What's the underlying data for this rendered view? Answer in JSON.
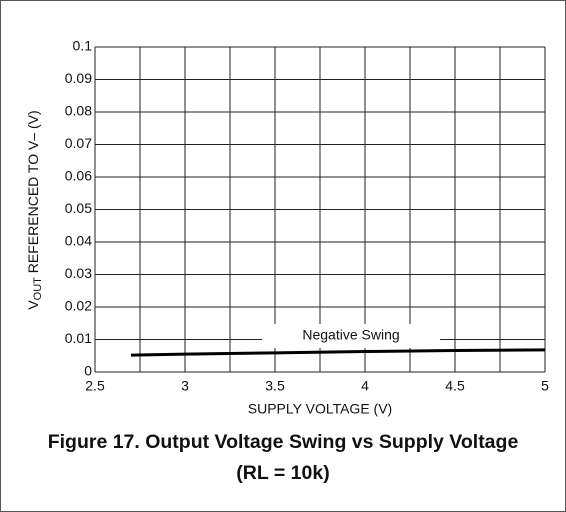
{
  "chart_data": {
    "type": "line",
    "title": "Figure 17. Output Voltage Swing vs Supply Voltage (RL = 10k)",
    "xlabel": "SUPPLY VOLTAGE (V)",
    "ylabel": [
      "V",
      "OUT",
      " REFERENCED TO V– (V)"
    ],
    "annotation": "Negative Swing",
    "x": [
      2.7,
      3,
      3.5,
      4,
      4.5,
      5
    ],
    "series": [
      {
        "name": "Negative Swing",
        "color": "#000000",
        "values": [
          0.0052,
          0.0055,
          0.0059,
          0.0063,
          0.0066,
          0.0068
        ]
      }
    ],
    "xlim": [
      2.5,
      5
    ],
    "xticks": [
      2.5,
      3,
      3.5,
      4,
      4.5,
      5
    ],
    "xgrid": [
      2.5,
      2.75,
      3,
      3.25,
      3.5,
      3.75,
      4,
      4.25,
      4.5,
      4.75,
      5
    ],
    "ylim": [
      0,
      0.1
    ],
    "yticks": [
      0,
      0.01,
      0.02,
      0.03,
      0.04,
      0.05,
      0.06,
      0.07,
      0.08,
      0.09,
      0.1
    ],
    "grid": true
  }
}
